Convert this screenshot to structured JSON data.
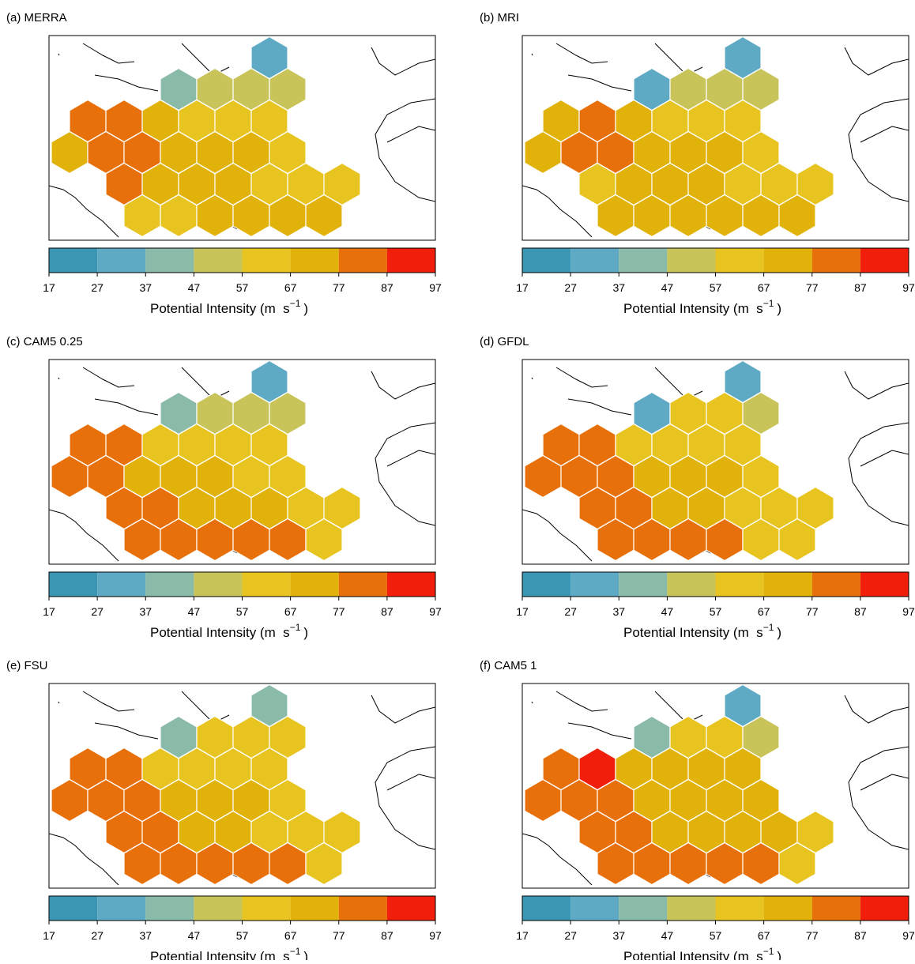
{
  "panels": [
    {
      "title": "(a) MERRA",
      "values": [
        32,
        42,
        52,
        52,
        52,
        82,
        82,
        72,
        62,
        62,
        62,
        72,
        82,
        82,
        72,
        72,
        72,
        62,
        82,
        72,
        72,
        72,
        62,
        62,
        62,
        62,
        62,
        72,
        72,
        72,
        72
      ]
    },
    {
      "title": "(b) MRI",
      "values": [
        32,
        32,
        52,
        52,
        52,
        72,
        82,
        72,
        62,
        62,
        62,
        72,
        82,
        82,
        72,
        72,
        72,
        62,
        62,
        72,
        72,
        72,
        62,
        62,
        62,
        72,
        72,
        72,
        72,
        72,
        72
      ]
    },
    {
      "title": "(c) CAM5 0.25",
      "values": [
        32,
        42,
        52,
        52,
        52,
        82,
        82,
        62,
        62,
        62,
        62,
        82,
        82,
        72,
        72,
        72,
        62,
        62,
        82,
        82,
        72,
        72,
        72,
        62,
        62,
        82,
        82,
        82,
        82,
        82,
        62
      ]
    },
    {
      "title": "(d) GFDL",
      "values": [
        32,
        32,
        62,
        62,
        52,
        82,
        82,
        62,
        62,
        62,
        62,
        82,
        82,
        82,
        72,
        72,
        72,
        62,
        82,
        82,
        72,
        72,
        62,
        62,
        62,
        82,
        82,
        82,
        82,
        62,
        62
      ]
    },
    {
      "title": "(e) FSU",
      "values": [
        42,
        42,
        62,
        62,
        62,
        82,
        82,
        62,
        62,
        62,
        62,
        82,
        82,
        82,
        72,
        72,
        72,
        62,
        82,
        82,
        72,
        72,
        62,
        62,
        62,
        82,
        82,
        82,
        82,
        82,
        62
      ]
    },
    {
      "title": "(f) CAM5 1",
      "values": [
        32,
        42,
        62,
        62,
        52,
        82,
        92,
        72,
        72,
        72,
        72,
        82,
        82,
        82,
        72,
        72,
        72,
        72,
        82,
        82,
        72,
        72,
        72,
        72,
        62,
        82,
        82,
        82,
        82,
        82,
        62
      ]
    }
  ],
  "colorbar": {
    "ticks": [
      17,
      27,
      37,
      47,
      57,
      67,
      77,
      87,
      97
    ],
    "colors": [
      "#3a96b2",
      "#5eaac4",
      "#8abaa8",
      "#c8c45a",
      "#e8c421",
      "#e0b20a",
      "#e8700a",
      "#f01e0a"
    ],
    "label": "Potential Intensity (m  s",
    "label_exponent": "−1",
    "label_close": ")"
  }
}
